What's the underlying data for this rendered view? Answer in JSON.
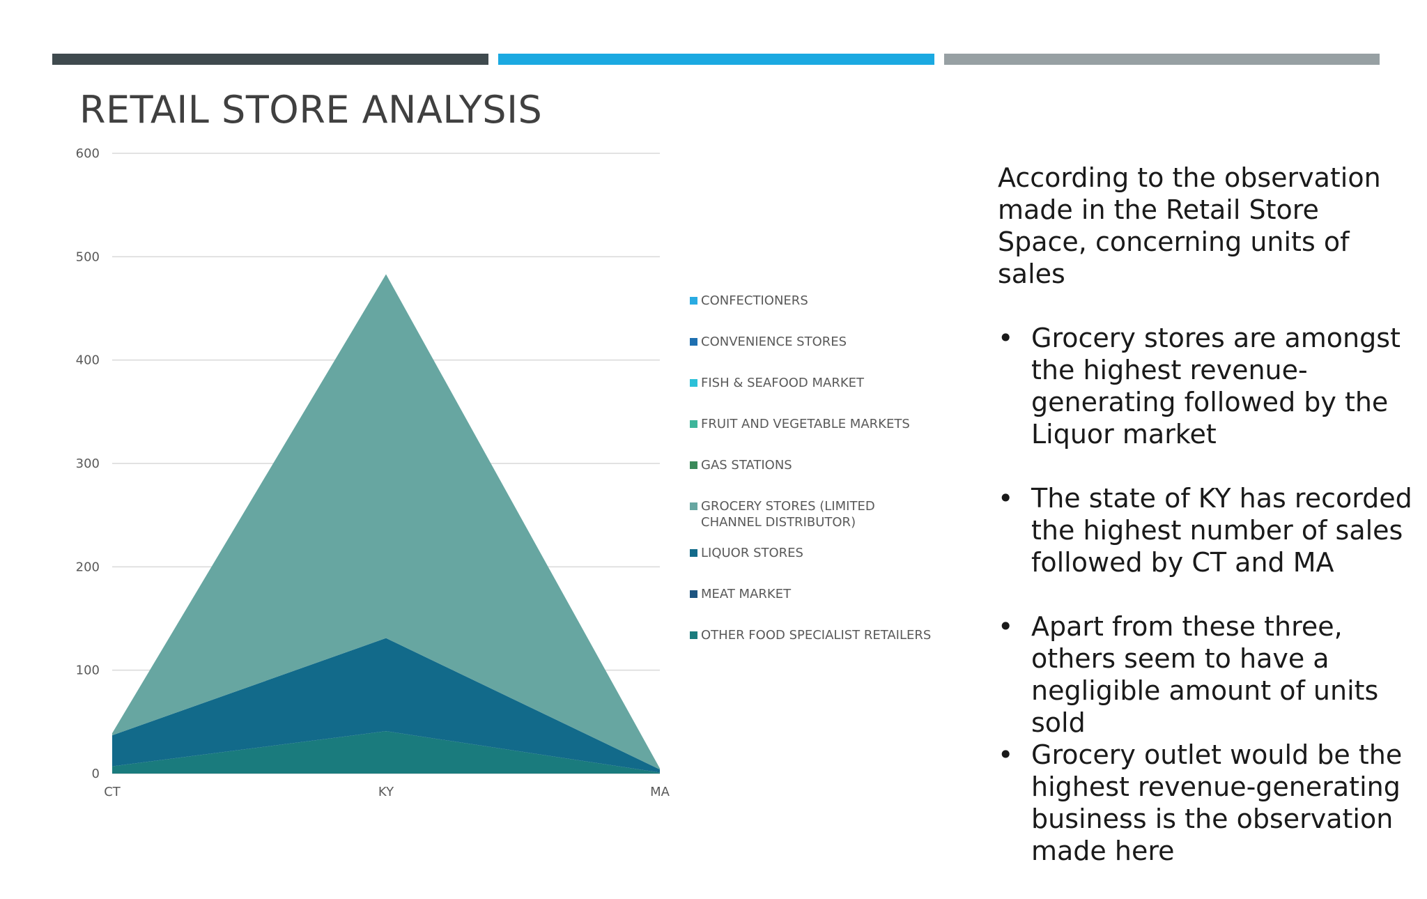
{
  "header_bars": [
    "#3f4a4e",
    "#1ba9e1",
    "#97a0a3"
  ],
  "page_title": "RETAIL STORE ANALYSIS",
  "notes": {
    "intro": "According to the observation made in the Retail Store Space, concerning units of sales",
    "bullets": [
      "Grocery stores are amongst the highest revenue-generating followed by the Liquor market",
      "The state of KY has recorded the highest number of sales followed by CT and MA",
      "Apart from these three, others seem to have a negligible amount of units sold",
      "Grocery outlet would be the highest revenue-generating business is the observation made here"
    ]
  },
  "chart_data": {
    "type": "area",
    "stacked": true,
    "categories": [
      "CT",
      "KY",
      "MA"
    ],
    "ylim": [
      0,
      600
    ],
    "yticks": [
      0,
      100,
      200,
      300,
      400,
      500,
      600
    ],
    "grid": true,
    "legend_position": "right",
    "series": [
      {
        "name": "CONFECTIONERS",
        "color": "#29abe2",
        "values": [
          0,
          0,
          0
        ]
      },
      {
        "name": "CONVENIENCE STORES",
        "color": "#1e6fb0",
        "values": [
          0,
          0,
          0
        ]
      },
      {
        "name": "FISH & SEAFOOD MARKET",
        "color": "#2bc0d8",
        "values": [
          0,
          0,
          0
        ]
      },
      {
        "name": "FRUIT AND VEGETABLE MARKETS",
        "color": "#3eb59a",
        "values": [
          0,
          0,
          0
        ]
      },
      {
        "name": "GAS STATIONS",
        "color": "#3a8a5a",
        "values": [
          0,
          0,
          0
        ]
      },
      {
        "name": "GROCERY STORES (LIMITED CHANNEL DISTRIBUTOR)",
        "color": "#67a6a1",
        "values": [
          2,
          352,
          1
        ]
      },
      {
        "name": "LIQUOR STORES",
        "color": "#126a8a",
        "values": [
          30,
          90,
          3
        ]
      },
      {
        "name": "MEAT MARKET",
        "color": "#1d5480",
        "values": [
          0,
          0,
          0
        ]
      },
      {
        "name": "OTHER FOOD SPECIALIST RETAILERS",
        "color": "#1a7b7d",
        "values": [
          7,
          41,
          1
        ]
      }
    ],
    "plot_order": [
      8,
      6,
      5
    ]
  }
}
